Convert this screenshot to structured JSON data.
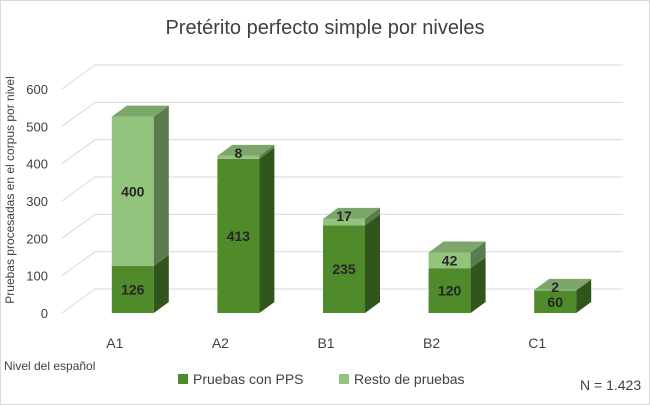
{
  "chart_data": {
    "type": "bar",
    "stacked": true,
    "three_d": true,
    "title": "Pretérito perfecto simple por niveles",
    "ylabel": "Pruebas procesadas en el corpus por nivel",
    "xlabel": "Nivel del español",
    "categories": [
      "A1",
      "A2",
      "B1",
      "B2",
      "C1"
    ],
    "series": [
      {
        "name": "Pruebas con PPS",
        "values": [
          126,
          413,
          235,
          120,
          60
        ],
        "color": "#4f8a2b"
      },
      {
        "name": "Resto de pruebas",
        "values": [
          400,
          8,
          17,
          42,
          2
        ],
        "color": "#93c47d"
      }
    ],
    "ylim": [
      0,
      600
    ],
    "yticks": [
      0,
      100,
      200,
      300,
      400,
      500,
      600
    ],
    "grid": true,
    "legend_position": "bottom"
  },
  "note": "N = 1.423"
}
